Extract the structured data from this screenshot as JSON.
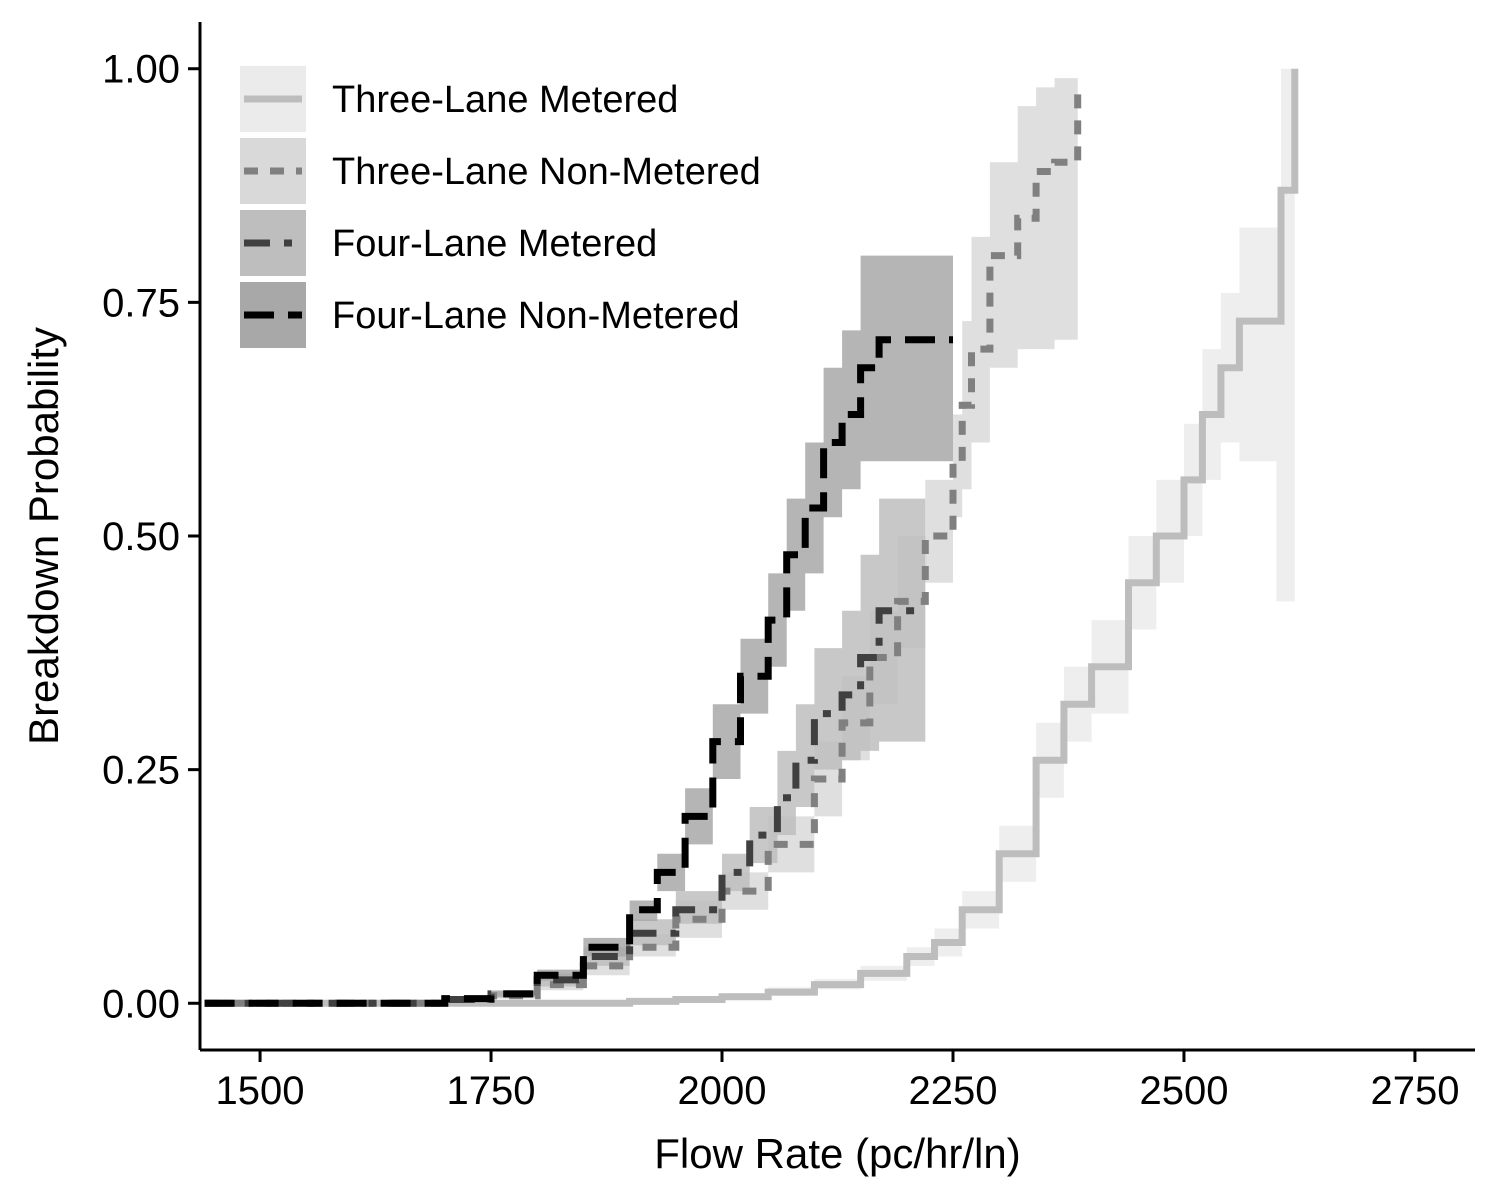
{
  "chart_data": {
    "type": "line",
    "title": "",
    "xlabel": "Flow Rate (pc/hr/ln)",
    "ylabel": "Breakdown Probability",
    "xlim": [
      1435,
      2815
    ],
    "ylim": [
      -0.05,
      1.05
    ],
    "x_ticks": [
      1500,
      1750,
      2000,
      2250,
      2500,
      2750
    ],
    "y_ticks": [
      0.0,
      0.25,
      0.5,
      0.75,
      1.0
    ],
    "x_tick_labels": [
      "1500",
      "1750",
      "2000",
      "2250",
      "2500",
      "2750"
    ],
    "y_tick_labels": [
      "0.00",
      "0.25",
      "0.50",
      "0.75",
      "1.00"
    ],
    "grid": false,
    "legend_position": "top-left",
    "step": true,
    "series": [
      {
        "name": "Three-Lane Metered",
        "line_color": "#bdbdbd",
        "band_color": "#ebebeb",
        "dash": "solid",
        "x": [
          1440,
          1600,
          1700,
          1800,
          1900,
          1950,
          2000,
          2050,
          2100,
          2150,
          2200,
          2230,
          2260,
          2300,
          2340,
          2370,
          2400,
          2440,
          2470,
          2500,
          2520,
          2540,
          2560,
          2600,
          2605,
          2620
        ],
        "y": [
          0.0,
          0.0,
          0.0,
          0.0,
          0.002,
          0.004,
          0.007,
          0.012,
          0.02,
          0.032,
          0.05,
          0.065,
          0.1,
          0.16,
          0.26,
          0.32,
          0.36,
          0.45,
          0.5,
          0.56,
          0.63,
          0.68,
          0.73,
          0.73,
          0.87,
          1.0
        ],
        "lower": [
          0.0,
          0.0,
          0.0,
          0.0,
          0.001,
          0.002,
          0.004,
          0.008,
          0.015,
          0.024,
          0.04,
          0.05,
          0.08,
          0.13,
          0.22,
          0.28,
          0.31,
          0.4,
          0.45,
          0.5,
          0.56,
          0.6,
          0.58,
          0.43,
          0.43,
          0.43
        ],
        "upper": [
          0.0,
          0.001,
          0.001,
          0.002,
          0.004,
          0.007,
          0.011,
          0.017,
          0.026,
          0.04,
          0.06,
          0.08,
          0.12,
          0.19,
          0.3,
          0.36,
          0.41,
          0.5,
          0.56,
          0.62,
          0.7,
          0.76,
          0.83,
          0.83,
          1.0,
          1.0
        ]
      },
      {
        "name": "Three-Lane Non-Metered",
        "line_color": "#808080",
        "band_color": "#d9d9d9",
        "dash": "short-dash",
        "x": [
          1440,
          1600,
          1700,
          1750,
          1800,
          1850,
          1900,
          1950,
          2000,
          2050,
          2100,
          2130,
          2160,
          2190,
          2220,
          2250,
          2260,
          2270,
          2290,
          2320,
          2340,
          2360,
          2385
        ],
        "y": [
          0.0,
          0.0,
          0.004,
          0.008,
          0.02,
          0.04,
          0.06,
          0.09,
          0.12,
          0.17,
          0.24,
          0.3,
          0.37,
          0.43,
          0.5,
          0.58,
          0.64,
          0.7,
          0.8,
          0.84,
          0.89,
          0.9,
          0.98
        ],
        "lower": [
          0.0,
          0.0,
          0.002,
          0.005,
          0.014,
          0.03,
          0.05,
          0.07,
          0.1,
          0.14,
          0.2,
          0.26,
          0.32,
          0.38,
          0.45,
          0.52,
          0.55,
          0.6,
          0.68,
          0.7,
          0.7,
          0.71,
          0.71
        ],
        "upper": [
          0.001,
          0.001,
          0.006,
          0.012,
          0.026,
          0.05,
          0.074,
          0.11,
          0.14,
          0.2,
          0.28,
          0.35,
          0.42,
          0.5,
          0.56,
          0.63,
          0.73,
          0.82,
          0.9,
          0.96,
          0.98,
          0.99,
          0.99
        ]
      },
      {
        "name": "Four-Lane Metered",
        "line_color": "#404040",
        "band_color": "#bebebe",
        "dash": "dash-dot",
        "x": [
          1440,
          1600,
          1700,
          1750,
          1800,
          1850,
          1900,
          1950,
          2000,
          2030,
          2060,
          2080,
          2100,
          2130,
          2150,
          2170,
          2200,
          2220
        ],
        "y": [
          0.0,
          0.0,
          0.004,
          0.01,
          0.025,
          0.05,
          0.075,
          0.1,
          0.14,
          0.18,
          0.22,
          0.26,
          0.31,
          0.33,
          0.37,
          0.42,
          0.42,
          0.42
        ],
        "lower": [
          0.0,
          0.0,
          0.002,
          0.006,
          0.018,
          0.04,
          0.062,
          0.085,
          0.12,
          0.15,
          0.18,
          0.21,
          0.25,
          0.26,
          0.27,
          0.28,
          0.28,
          0.28
        ],
        "upper": [
          0.001,
          0.001,
          0.006,
          0.014,
          0.032,
          0.06,
          0.09,
          0.12,
          0.16,
          0.21,
          0.27,
          0.32,
          0.38,
          0.42,
          0.48,
          0.54,
          0.54,
          0.54
        ]
      },
      {
        "name": "Four-Lane Non-Metered",
        "line_color": "#000000",
        "band_color": "#a8a8a8",
        "dash": "long-dash",
        "x": [
          1440,
          1600,
          1700,
          1750,
          1800,
          1850,
          1900,
          1930,
          1960,
          1990,
          2020,
          2050,
          2070,
          2090,
          2110,
          2130,
          2150,
          2170,
          2250
        ],
        "y": [
          0.0,
          0.0,
          0.005,
          0.01,
          0.03,
          0.06,
          0.1,
          0.14,
          0.2,
          0.28,
          0.35,
          0.41,
          0.48,
          0.53,
          0.6,
          0.63,
          0.68,
          0.71,
          0.71
        ],
        "lower": [
          0.0,
          0.0,
          0.003,
          0.007,
          0.024,
          0.05,
          0.088,
          0.12,
          0.17,
          0.24,
          0.31,
          0.36,
          0.42,
          0.46,
          0.52,
          0.55,
          0.58,
          0.58,
          0.58
        ],
        "upper": [
          0.001,
          0.001,
          0.007,
          0.013,
          0.036,
          0.07,
          0.11,
          0.16,
          0.23,
          0.32,
          0.39,
          0.46,
          0.54,
          0.6,
          0.68,
          0.72,
          0.8,
          0.8,
          0.8
        ]
      }
    ]
  }
}
